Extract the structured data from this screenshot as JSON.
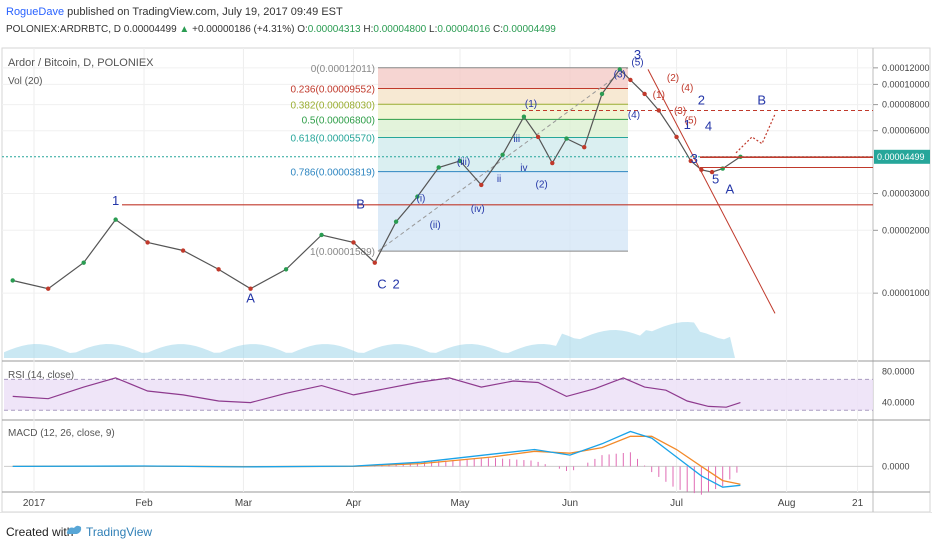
{
  "header": {
    "author": "RogueDave",
    "published": "published on TradingView.com, July 19, 2017 09:49 EST",
    "symbol_line": "POLONIEX:ARDRBTC, D  0.00004499",
    "change": "+0.00000186 (+4.31%)",
    "o_label": "O:",
    "o_value": "0.00004313",
    "h_label": "H:",
    "h_value": "0.00004800",
    "l_label": "L:",
    "l_value": "0.00004016",
    "c_label": "C:",
    "c_value": "0.00004499"
  },
  "footer": {
    "created_with": "Created with",
    "brand": "TradingView"
  },
  "colors": {
    "up": "#2a9c52",
    "down": "#c0392b",
    "volume": "#9ed6ea",
    "rsi_line": "#8e3a8e",
    "rsi_band": "#ece1f7",
    "macd_line": "#1aa3e8",
    "signal_line": "#f28a2a",
    "histogram": "#e06bb4",
    "wave_blue": "#2436a8",
    "wave_red": "#c0392b",
    "last_price_badge": "#26a69a"
  },
  "chart_data": [
    {
      "type": "line",
      "title": "Ardor / Bitcoin, D, POLONIEX",
      "subtitle": "Vol (20)",
      "x_tick_labels": [
        "2017",
        "Feb",
        "Mar",
        "Apr",
        "May",
        "Jun",
        "Jul",
        "Aug",
        "21"
      ],
      "y_tick_labels": [
        "0.00012000",
        "0.00010000",
        "0.00008000",
        "0.00006000",
        "0.00003000",
        "0.00002000",
        "0.00001000"
      ],
      "last_price": "0.00004499",
      "x_range": [
        "2017-01-01",
        "2017-08-21"
      ],
      "ylim": [
        5e-06,
        0.000128
      ],
      "y_scale": "log",
      "series": [
        {
          "name": "",
          "x": [
            "2016-12-26",
            "2017-01-05",
            "2017-01-15",
            "2017-01-24",
            "2017-02-02",
            "2017-02-12",
            "2017-02-22",
            "2017-03-03",
            "2017-03-13",
            "2017-03-23",
            "2017-04-01",
            "2017-04-07",
            "2017-04-13",
            "2017-04-19",
            "2017-04-25",
            "2017-05-01",
            "2017-05-07",
            "2017-05-13",
            "2017-05-19",
            "2017-05-23",
            "2017-05-27",
            "2017-05-31",
            "2017-06-05",
            "2017-06-10",
            "2017-06-15",
            "2017-06-18",
            "2017-06-22",
            "2017-06-26",
            "2017-07-01",
            "2017-07-05",
            "2017-07-08",
            "2017-07-11",
            "2017-07-14",
            "2017-07-19"
          ],
          "values": [
            1.15e-05,
            1.05e-05,
            1.4e-05,
            2.25e-05,
            1.75e-05,
            1.6e-05,
            1.3e-05,
            1.05e-05,
            1.3e-05,
            1.9e-05,
            1.75e-05,
            1.4e-05,
            2.2e-05,
            2.9e-05,
            4e-05,
            4.3e-05,
            3.3e-05,
            4.6e-05,
            7e-05,
            5.6e-05,
            4.2e-05,
            5.5e-05,
            5e-05,
            9e-05,
            0.000118,
            0.000105,
            9e-05,
            7.5e-05,
            5.6e-05,
            4.3e-05,
            3.9e-05,
            3.8e-05,
            3.95e-05,
            4.5e-05
          ]
        }
      ],
      "fibonacci": [
        {
          "label": "0(0.00012011)",
          "value": 0.00012011,
          "color": "#888888"
        },
        {
          "label": "0.236(0.00009552)",
          "value": 9.552e-05,
          "color": "#c0392b"
        },
        {
          "label": "0.382(0.00008030)",
          "value": 8.03e-05,
          "color": "#9aae32"
        },
        {
          "label": "0.5(0.00006800)",
          "value": 6.8e-05,
          "color": "#2e9e48"
        },
        {
          "label": "0.618(0.00005570)",
          "value": 5.57e-05,
          "color": "#26a69a"
        },
        {
          "label": "0.786(0.00003819)",
          "value": 3.819e-05,
          "color": "#2e86c1"
        },
        {
          "label": "1(0.00001589)",
          "value": 1.589e-05,
          "color": "#888888"
        }
      ],
      "wave_labels": [
        {
          "text": "1",
          "color": "#2436a8"
        },
        {
          "text": "A",
          "color": "#2436a8"
        },
        {
          "text": "B",
          "color": "#2436a8"
        },
        {
          "text": "C",
          "color": "#2436a8"
        },
        {
          "text": "2",
          "color": "#2436a8"
        },
        {
          "text": "(i)",
          "color": "#2436a8"
        },
        {
          "text": "(ii)",
          "color": "#2436a8"
        },
        {
          "text": "(iii)",
          "color": "#2436a8"
        },
        {
          "text": "(iv)",
          "color": "#2436a8"
        },
        {
          "text": "iii",
          "color": "#2436a8"
        },
        {
          "text": "iv",
          "color": "#2436a8"
        },
        {
          "text": "ii",
          "color": "#2436a8"
        },
        {
          "text": "(1)",
          "color": "#2436a8"
        },
        {
          "text": "(2)",
          "color": "#2436a8"
        },
        {
          "text": "(3)",
          "color": "#2436a8"
        },
        {
          "text": "(4)",
          "color": "#2436a8"
        },
        {
          "text": "(5)",
          "color": "#2436a8"
        },
        {
          "text": "3",
          "color": "#2436a8"
        },
        {
          "text": "(2)",
          "color": "#c0392b"
        },
        {
          "text": "(1)",
          "color": "#c0392b"
        },
        {
          "text": "(4)",
          "color": "#c0392b"
        },
        {
          "text": "(3)",
          "color": "#c0392b"
        },
        {
          "text": "(5)",
          "color": "#c0392b"
        },
        {
          "text": "2",
          "color": "#2436a8"
        },
        {
          "text": "1",
          "color": "#2436a8"
        },
        {
          "text": "4",
          "color": "#2436a8"
        },
        {
          "text": "3",
          "color": "#2436a8"
        },
        {
          "text": "5",
          "color": "#2436a8"
        },
        {
          "text": "A",
          "color": "#2436a8"
        },
        {
          "text": "B",
          "color": "#2436a8"
        }
      ]
    },
    {
      "type": "line",
      "title": "RSI (14, close)",
      "y_tick_labels": [
        "80.0000",
        "40.0000"
      ],
      "ylim": [
        20,
        90
      ],
      "series": [
        {
          "name": "",
          "x": [
            "2016-12-26",
            "2017-01-05",
            "2017-01-15",
            "2017-01-24",
            "2017-02-02",
            "2017-02-12",
            "2017-02-22",
            "2017-03-03",
            "2017-03-13",
            "2017-03-23",
            "2017-04-01",
            "2017-04-10",
            "2017-04-19",
            "2017-04-28",
            "2017-05-07",
            "2017-05-16",
            "2017-05-23",
            "2017-05-31",
            "2017-06-08",
            "2017-06-16",
            "2017-06-22",
            "2017-06-28",
            "2017-07-04",
            "2017-07-10",
            "2017-07-15",
            "2017-07-19"
          ],
          "values": [
            48,
            45,
            60,
            72,
            55,
            50,
            42,
            40,
            52,
            62,
            50,
            58,
            66,
            72,
            60,
            68,
            66,
            48,
            58,
            72,
            60,
            56,
            42,
            35,
            34,
            40
          ]
        }
      ]
    },
    {
      "type": "line",
      "title": "MACD (12, 26, close, 9)",
      "y_tick_labels": [
        "0.0000"
      ],
      "ylim": [
        -2.5e-05,
        4.5e-05
      ],
      "series": [
        {
          "name": "",
          "x": [
            "2016-12-26",
            "2017-02-01",
            "2017-03-01",
            "2017-04-01",
            "2017-04-20",
            "2017-05-10",
            "2017-05-22",
            "2017-06-01",
            "2017-06-10",
            "2017-06-18",
            "2017-06-24",
            "2017-07-01",
            "2017-07-08",
            "2017-07-14",
            "2017-07-19"
          ],
          "values": [
            0.0,
            5e-07,
            -5e-07,
            3e-07,
            4.5e-06,
            1.3e-05,
            1.8e-05,
            1.2e-05,
            2.4e-05,
            3.7e-05,
            3e-05,
            1e-05,
            -1e-05,
            -2.2e-05,
            -2e-05
          ]
        },
        {
          "name": "",
          "x": [
            "2016-12-26",
            "2017-02-01",
            "2017-03-01",
            "2017-04-01",
            "2017-04-20",
            "2017-05-10",
            "2017-05-22",
            "2017-06-01",
            "2017-06-10",
            "2017-06-18",
            "2017-06-24",
            "2017-07-01",
            "2017-07-08",
            "2017-07-14",
            "2017-07-19"
          ],
          "values": [
            0.0,
            3e-07,
            -3e-07,
            1e-07,
            3e-06,
            1e-05,
            1.6e-05,
            1.4e-05,
            2e-05,
            3.2e-05,
            3.2e-05,
            1.8e-05,
            0.0,
            -1.5e-05,
            -1.9e-05
          ]
        }
      ]
    }
  ]
}
